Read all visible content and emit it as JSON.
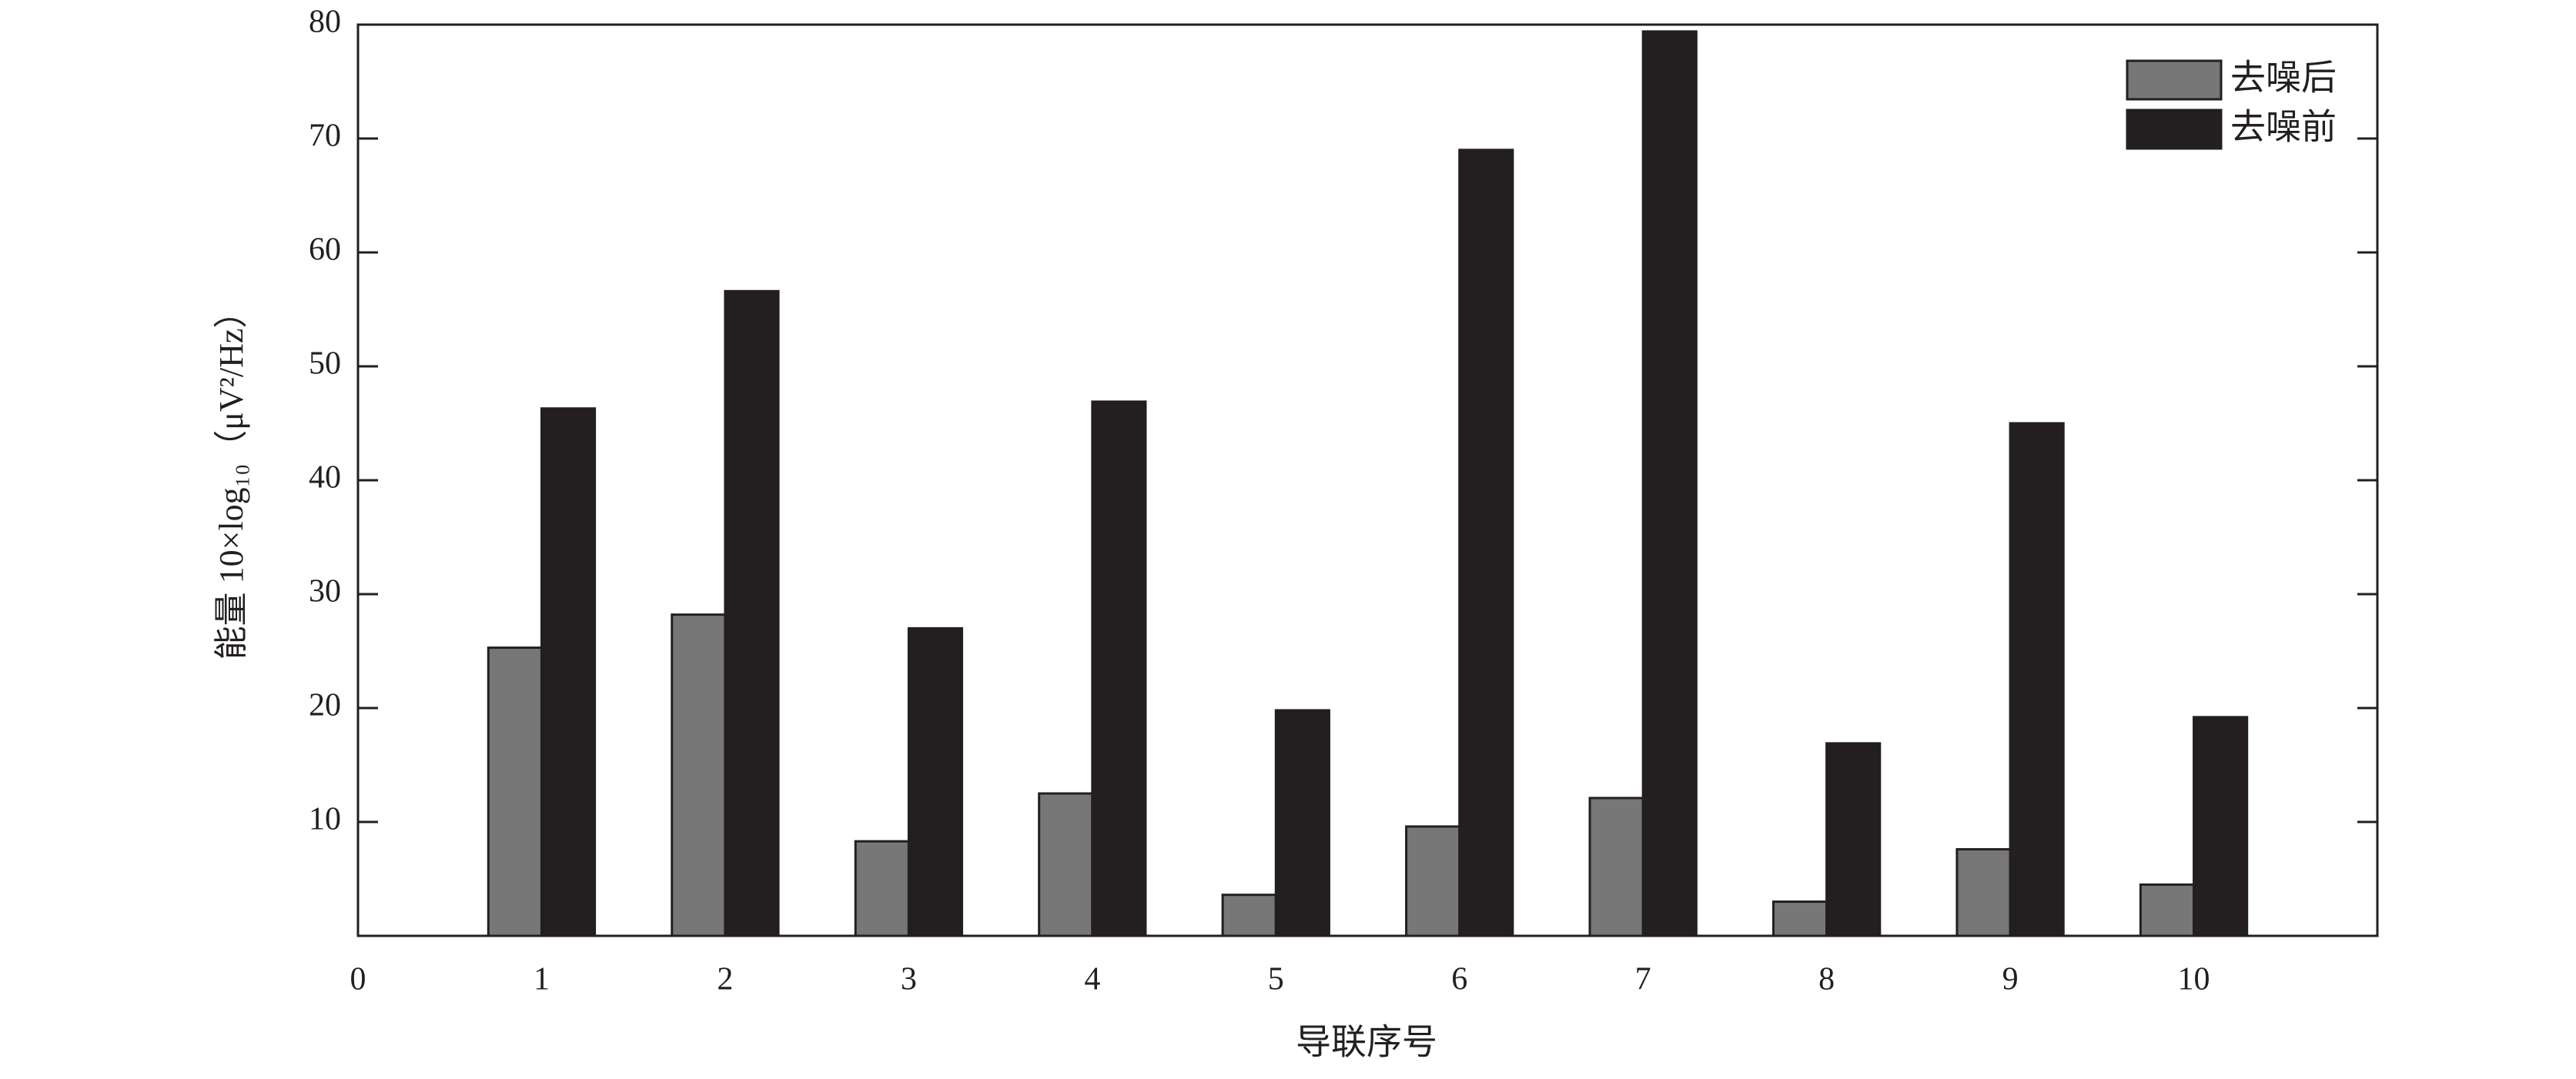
{
  "chart_data": {
    "type": "bar",
    "x_label": "导联序号",
    "y_label": "能量 10×log₁₀（μV²/Hz）",
    "x": [
      1,
      2,
      3,
      4,
      5,
      6,
      7,
      8,
      9,
      10
    ],
    "series": [
      {
        "name": "去噪后",
        "color": "#777777",
        "values": [
          25.3,
          28.2,
          8.3,
          12.5,
          3.6,
          9.6,
          12.1,
          3.0,
          7.6,
          4.5
        ]
      },
      {
        "name": "去噪前",
        "color": "#231f20",
        "values": [
          46.3,
          56.6,
          27.0,
          46.9,
          19.8,
          69.0,
          79.4,
          16.9,
          45.0,
          19.2
        ]
      }
    ],
    "xlim": [
      0,
      11
    ],
    "xticks": [
      0,
      1,
      2,
      3,
      4,
      5,
      6,
      7,
      8,
      9,
      10
    ],
    "ylim": [
      0,
      80
    ],
    "yticks": [
      10,
      20,
      30,
      40,
      50,
      60,
      70,
      80
    ],
    "legend": "upper right",
    "grid": false
  }
}
